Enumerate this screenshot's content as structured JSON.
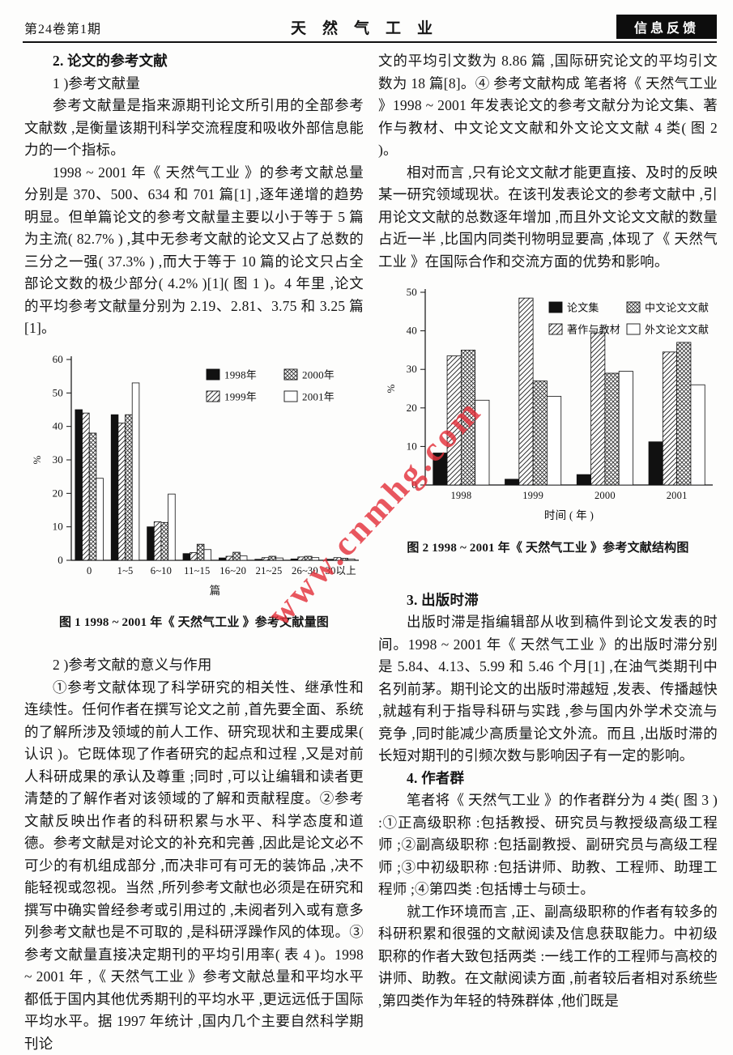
{
  "page": {
    "header": {
      "issue": "第24卷第1期",
      "journal_title": "天然气工业",
      "badge": "信息反馈"
    },
    "watermark": "www.cnmhg.com",
    "watermark_color": "#e4323c",
    "left_column": {
      "heading_2": "2. 论文的参考文献",
      "sub_1": "1 )参考文献量",
      "para_1": "参考文献量是指来源期刊论文所引用的全部参考文献数 ,是衡量该期刊科学交流程度和吸收外部信息能力的一个指标。",
      "para_2": "1998 ~ 2001 年《 天然气工业 》的参考文献总量分别是 370、500、634 和 701 篇[1] ,逐年递增的趋势明显。但单篇论文的参考文献量主要以小于等于 5 篇为主流( 82.7% ) ,其中无参考文献的论文又占了总数的三分之一强( 37.3% ) ,而大于等于 10 篇的论文只占全部论文数的极少部分( 4.2% )[1]( 图 1 )。4 年里 ,论文的平均参考文献量分别为 2.19、2.81、3.75 和 3.25 篇[1]。",
      "sub_2": "2 )参考文献的意义与作用",
      "para_3": "①参考文献体现了科学研究的相关性、继承性和连续性。任何作者在撰写论文之前 ,首先要全面、系统的了解所涉及领域的前人工作、研究现状和主要成果( 认识 )。它既体现了作者研究的起点和过程 ,又是对前人科研成果的承认及尊重 ;同时 ,可以让编辑和读者更清楚的了解作者对该领域的了解和贡献程度。②参考文献反映出作者的科研积累与水平、科学态度和道德。参考文献是对论文的补充和完善 ,因此是论文必不可少的有机组成部分 ,而决非可有可无的装饰品 ,决不能轻视或忽视。当然 ,所列参考文献也必须是在研究和撰写中确实曾经参考或引用过的 ,未阅者列入或有意多列参考文献也是不可取的 ,是科研浮躁作风的体现。③参考文献量直接决定期刊的平均引用率( 表 4 )。1998 ~ 2001 年 ,《 天然气工业 》参考文献总量和平均水平都低于国内其他优秀期刊的平均水平 ,更远远低于国际平均水平。据 1997 年统计 ,国内几个主要自然科学期刊论"
    },
    "right_column": {
      "para_1": "文的平均引文数为 8.86 篇 ,国际研究论文的平均引文数为 18 篇[8]。④ 参考文献构成  笔者将《 天然气工业 》1998 ~ 2001 年发表论文的参考文献分为论文集、著作与教材、中文论文文献和外文论文文献 4 类( 图 2 )。",
      "para_2": "相对而言 ,只有论文文献才能更直接、及时的反映某一研究领域现状。在该刊发表论文的参考文献中 ,引用论文文献的总数逐年增加 ,而且外文论文文献的数量占近一半 ,比国内同类刊物明显要高 ,体现了《 天然气工业 》在国际合作和交流方面的优势和影响。",
      "heading_3": "3. 出版时滞",
      "para_3": "出版时滞是指编辑部从收到稿件到论文发表的时间。1998 ~ 2001 年《 天然气工业 》的出版时滞分别是 5.84、4.13、5.99 和 5.46 个月[1] ,在油气类期刊中名列前茅。期刊论文的出版时滞越短 ,发表、传播越快 ,就越有利于指导科研与实践 ,参与国内外学术交流与竞争 ,同时能减少高质量论文外流。而且 ,出版时滞的长短对期刊的引频次数与影响因子有一定的影响。",
      "heading_4": "4. 作者群",
      "para_4": "笔者将《 天然气工业 》的作者群分为 4 类( 图 3 ) :①正高级职称 :包括教授、研究员与教授级高级工程师 ;②副高级职称 :包括副教授、副研究员与高级工程师 ;③中初级职称 :包括讲师、助教、工程师、助理工程师 ;④第四类 :包括博士与硕士。",
      "para_5": "就工作环境而言 ,正、副高级职称的作者有较多的科研积累和很强的文献阅读及信息获取能力。中初级职称的作者大致包括两类 :一线工作的工程师与高校的讲师、助教。在文献阅读方面 ,前者较后者相对系统些 ,第四类作为年轻的特殊群体 ,他们既是"
    }
  },
  "chart_data": [
    {
      "type": "bar",
      "caption": "图 1    1998 ~ 2001 年《 天然气工业 》参考文献量图",
      "categories": [
        "0",
        "1~5",
        "6~10",
        "11~15",
        "16~20",
        "21~25",
        "26~30",
        "30以上"
      ],
      "series": [
        {
          "name": "1998年",
          "pattern": "solid",
          "values": [
            45,
            43.5,
            10,
            2,
            0.7,
            0.3,
            0.4,
            0.3
          ]
        },
        {
          "name": "1999年",
          "pattern": "diag",
          "values": [
            44,
            41,
            11.5,
            2.3,
            1.2,
            0.8,
            1.0,
            0.8
          ]
        },
        {
          "name": "2000年",
          "pattern": "cross",
          "values": [
            38,
            43.5,
            11.3,
            4.8,
            2.4,
            1.2,
            1.2,
            0.6
          ]
        },
        {
          "name": "2001年",
          "pattern": "white",
          "values": [
            24.5,
            53,
            19.8,
            3.2,
            1.3,
            0.7,
            0.8,
            0.4
          ]
        }
      ],
      "xlabel": "篇",
      "ylabel": "%",
      "ylim": [
        0,
        60
      ],
      "ytick": 10,
      "legend_rows": [
        [
          0,
          2
        ],
        [
          1,
          3
        ]
      ],
      "grid": false,
      "legend_position": "top-right"
    },
    {
      "type": "bar",
      "caption": "图 2    1998 ~ 2001 年《 天然气工业 》参考文献结构图",
      "categories": [
        "1998",
        "1999",
        "2000",
        "2001"
      ],
      "series": [
        {
          "name": "论文集",
          "pattern": "solid",
          "values": [
            8.3,
            1.5,
            2.7,
            11.2
          ]
        },
        {
          "name": "著作与教材",
          "pattern": "diag",
          "values": [
            33.5,
            48.5,
            39.5,
            34.5
          ]
        },
        {
          "name": "中文论文文献",
          "pattern": "cross",
          "values": [
            35,
            27,
            29,
            37
          ]
        },
        {
          "name": "外文论文文献",
          "pattern": "white",
          "values": [
            22,
            23,
            29.5,
            26
          ]
        }
      ],
      "xlabel": "时间 ( 年 )",
      "ylabel": "%",
      "ylim": [
        0,
        50
      ],
      "ytick": 10,
      "legend_rows": [
        [
          0,
          2
        ],
        [
          1,
          3
        ]
      ],
      "grid": false,
      "legend_position": "top-right"
    }
  ]
}
